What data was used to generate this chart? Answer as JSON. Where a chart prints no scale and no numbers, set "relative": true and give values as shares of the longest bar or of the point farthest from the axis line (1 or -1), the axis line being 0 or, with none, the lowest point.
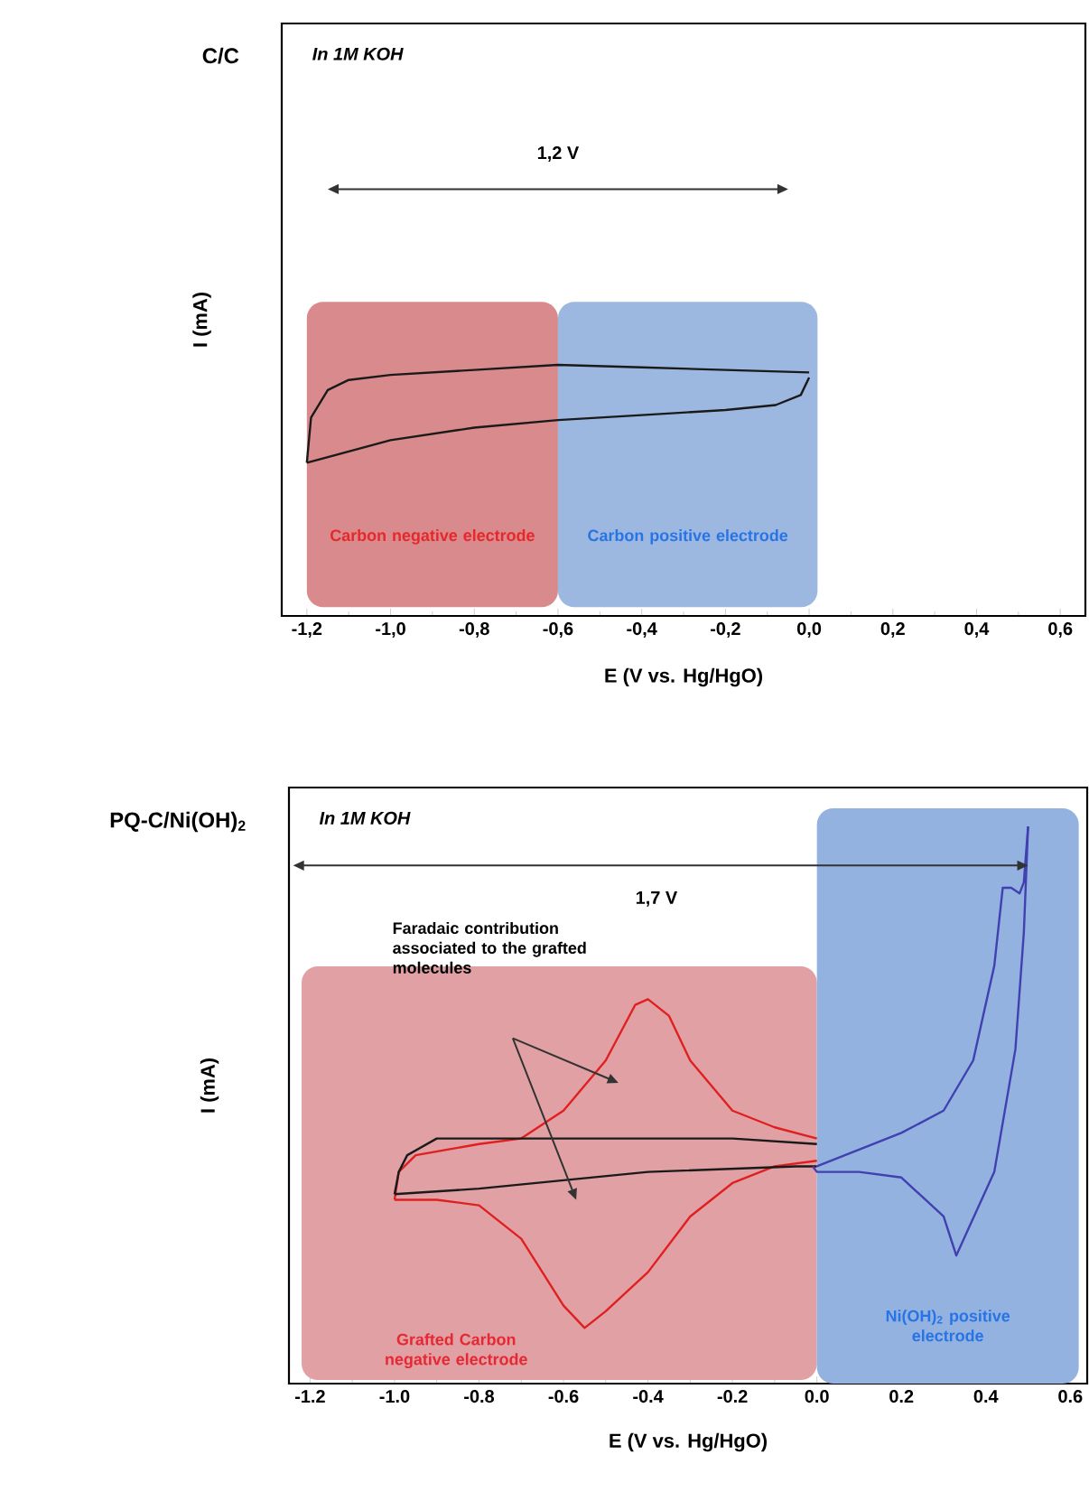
{
  "chart_data": [
    {
      "type": "line",
      "relative": true,
      "title": "C/C",
      "xlabel": "E (V vs. Hg/HgO)",
      "ylabel": "I (mA)",
      "annotations": [
        "In 1M KOH",
        "1,2 V"
      ],
      "xlim": [
        -1.26,
        0.66
      ],
      "xticks": [
        {
          "value": -1.2,
          "label": "-1,2"
        },
        {
          "value": -1.0,
          "label": "-1,0"
        },
        {
          "value": -0.8,
          "label": "-0,8"
        },
        {
          "value": -0.6,
          "label": "-0,6"
        },
        {
          "value": -0.4,
          "label": "-0,4"
        },
        {
          "value": -0.2,
          "label": "-0,2"
        },
        {
          "value": 0.0,
          "label": "0,0"
        },
        {
          "value": 0.2,
          "label": "0,2"
        },
        {
          "value": 0.4,
          "label": "0,4"
        },
        {
          "value": 0.6,
          "label": "0,6"
        }
      ],
      "bands": [
        {
          "axis": "x",
          "from": -1.2,
          "to": -0.6,
          "label": "Carbon negative electrode",
          "color": "#d98a8c"
        },
        {
          "axis": "x",
          "from": -0.6,
          "to": 0.02,
          "label": "Carbon positive electrode",
          "color": "#9db8e0"
        }
      ],
      "series": [
        {
          "color": "#1a1a1a",
          "x": [
            -1.2,
            -1.19,
            -1.15,
            -1.1,
            -1.0,
            -0.8,
            -0.6,
            -0.4,
            -0.2,
            0.0
          ],
          "values": [
            0.61,
            0.79,
            0.9,
            0.94,
            0.96,
            0.98,
            1.0,
            0.99,
            0.98,
            0.97
          ]
        },
        {
          "color": "#1a1a1a",
          "x": [
            0.0,
            -0.02,
            -0.08,
            -0.2,
            -0.4,
            -0.6,
            -0.8,
            -1.0,
            -1.2
          ],
          "values": [
            0.95,
            0.88,
            0.84,
            0.82,
            0.8,
            0.78,
            0.75,
            0.7,
            0.61
          ]
        }
      ]
    },
    {
      "type": "line",
      "relative": true,
      "title": "PQ-C/Ni(OH)$_{2}$",
      "xlabel": "E (V vs. Hg/HgO)",
      "ylabel": "I (mA)",
      "annotations": [
        "In 1M KOH",
        "1,7 V",
        "Faradaic contribution associated to the grafted molecules"
      ],
      "xlim": [
        -1.25,
        0.64
      ],
      "xticks": [
        {
          "value": -1.2,
          "label": "-1.2"
        },
        {
          "value": -1.0,
          "label": "-1.0"
        },
        {
          "value": -0.8,
          "label": "-0.8"
        },
        {
          "value": -0.6,
          "label": "-0.6"
        },
        {
          "value": -0.4,
          "label": "-0.4"
        },
        {
          "value": -0.2,
          "label": "-0.2"
        },
        {
          "value": 0.0,
          "label": "0.0"
        },
        {
          "value": 0.2,
          "label": "0.2"
        },
        {
          "value": 0.4,
          "label": "0.4"
        },
        {
          "value": 0.6,
          "label": "0.6"
        }
      ],
      "bands": [
        {
          "axis": "x",
          "from": -1.22,
          "to": 0.0,
          "label": "Grafted Carbon negative electrode",
          "color": "#e0a0a4"
        },
        {
          "axis": "x",
          "from": 0.0,
          "to": 0.62,
          "label": "Ni(OH)$_{2}$ positive electrode",
          "color": "#93b2e0"
        }
      ],
      "series": [
        {
          "color": "#e02020",
          "x": [
            -1.0,
            -0.99,
            -0.95,
            -0.8,
            -0.7,
            -0.6,
            -0.5,
            -0.43,
            -0.4,
            -0.35,
            -0.3,
            -0.2,
            -0.1,
            0.0
          ],
          "values": [
            0.33,
            0.38,
            0.41,
            0.43,
            0.44,
            0.49,
            0.58,
            0.68,
            0.69,
            0.66,
            0.58,
            0.49,
            0.46,
            0.44
          ]
        },
        {
          "color": "#e02020",
          "x": [
            0.0,
            -0.1,
            -0.2,
            -0.3,
            -0.4,
            -0.5,
            -0.55,
            -0.6,
            -0.7,
            -0.8,
            -0.9,
            -1.0
          ],
          "values": [
            0.4,
            0.39,
            0.36,
            0.3,
            0.2,
            0.13,
            0.1,
            0.14,
            0.26,
            0.32,
            0.33,
            0.33
          ]
        },
        {
          "color": "#1a1a1a",
          "x": [
            -1.0,
            -0.99,
            -0.97,
            -0.9,
            -0.6,
            -0.2,
            0.0
          ],
          "values": [
            0.34,
            0.38,
            0.41,
            0.44,
            0.44,
            0.44,
            0.43
          ]
        },
        {
          "color": "#1a1a1a",
          "x": [
            0.0,
            -0.05,
            -0.4,
            -0.8,
            -1.0
          ],
          "values": [
            0.39,
            0.39,
            0.38,
            0.35,
            0.34
          ]
        },
        {
          "color": "#4040b0",
          "x": [
            0.0,
            0.1,
            0.2,
            0.3,
            0.37,
            0.42,
            0.44,
            0.46,
            0.48,
            0.49,
            0.5
          ],
          "values": [
            0.39,
            0.42,
            0.45,
            0.49,
            0.58,
            0.75,
            0.89,
            0.89,
            0.88,
            0.9,
            1.0
          ]
        },
        {
          "color": "#4040b0",
          "x": [
            0.5,
            0.49,
            0.47,
            0.42,
            0.36,
            0.33,
            0.3,
            0.2,
            0.1,
            0.0,
            -0.01
          ],
          "values": [
            1.0,
            0.81,
            0.6,
            0.38,
            0.28,
            0.23,
            0.3,
            0.37,
            0.38,
            0.38,
            0.39
          ]
        }
      ]
    }
  ]
}
